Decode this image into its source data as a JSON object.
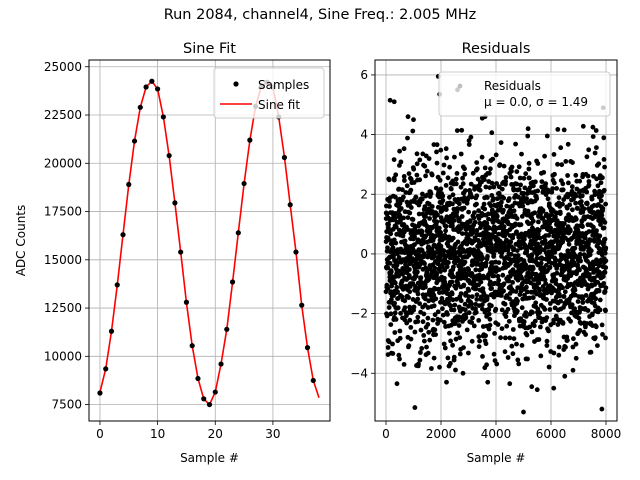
{
  "figure": {
    "suptitle": "Run 2084, channel4, Sine Freq.: 2.005 MHz"
  },
  "chart_data": [
    {
      "type": "line",
      "title": "Sine Fit",
      "xlabel": "Sample #",
      "ylabel": "ADC Counts",
      "xlim": [
        -1.9,
        39.9
      ],
      "ylim": [
        6650,
        25350
      ],
      "xticks": [
        0,
        10,
        20,
        30
      ],
      "yticks": [
        7500,
        10000,
        12500,
        15000,
        17500,
        20000,
        22500,
        25000
      ],
      "xtick_labels": [
        "0",
        "10",
        "20",
        "30"
      ],
      "ytick_labels": [
        "7500",
        "10000",
        "12500",
        "15000",
        "17500",
        "20000",
        "22500",
        "25000"
      ],
      "grid": true,
      "legend_position": "top-right",
      "series": [
        {
          "name": "Samples",
          "style": "markers",
          "color": "#000000",
          "x": [
            0,
            1,
            2,
            3,
            4,
            5,
            6,
            7,
            8,
            9,
            10,
            11,
            12,
            13,
            14,
            15,
            16,
            17,
            18,
            19,
            20,
            21,
            22,
            23,
            24,
            25,
            26,
            27,
            28,
            29,
            30,
            31,
            32,
            33,
            34,
            35,
            36,
            37
          ],
          "y": [
            8100,
            9350,
            11300,
            13700,
            16300,
            18900,
            21150,
            22900,
            23950,
            24250,
            23850,
            22400,
            20400,
            17950,
            15400,
            12800,
            10550,
            8850,
            7800,
            7500,
            8150,
            9600,
            11400,
            13850,
            16400,
            18950,
            21200,
            22950,
            24000,
            24200,
            23950,
            22400,
            20300,
            17850,
            15400,
            12650,
            10450,
            8750
          ]
        },
        {
          "name": "Sine fit",
          "style": "line",
          "color": "#ff0000",
          "x": [
            0,
            1,
            2,
            3,
            4,
            5,
            6,
            7,
            8,
            9,
            10,
            11,
            12,
            13,
            14,
            15,
            16,
            17,
            18,
            19,
            20,
            21,
            22,
            23,
            24,
            25,
            26,
            27,
            28,
            29,
            30,
            31,
            32,
            33,
            34,
            35,
            36,
            37,
            38
          ],
          "y": [
            8150,
            9350,
            11300,
            13700,
            16300,
            18900,
            21150,
            22900,
            23950,
            24250,
            23850,
            22400,
            20400,
            17950,
            15400,
            12800,
            10550,
            8850,
            7800,
            7500,
            8150,
            9600,
            11400,
            13850,
            16400,
            18950,
            21200,
            22950,
            24000,
            24200,
            23950,
            22400,
            20300,
            17850,
            15400,
            12650,
            10450,
            8750,
            7850
          ]
        }
      ]
    },
    {
      "type": "scatter",
      "title": "Residuals",
      "xlabel": "Sample #",
      "ylabel": "",
      "xlim": [
        -400,
        8400
      ],
      "ylim": [
        -5.6,
        6.5
      ],
      "xticks": [
        0,
        2000,
        4000,
        6000,
        8000
      ],
      "yticks": [
        -4,
        -2,
        0,
        2,
        4,
        6
      ],
      "xtick_labels": [
        "0",
        "2000",
        "4000",
        "6000",
        "8000"
      ],
      "ytick_labels": [
        "−4",
        "−2",
        "0",
        "2",
        "4",
        "6"
      ],
      "grid": true,
      "legend_position": "top-right",
      "n_points": 8000,
      "mu": 0.0,
      "sigma": 1.49,
      "legend_line1": "Residuals",
      "legend_line2_prefix": "μ = 0.0, σ = 1.49",
      "series": [
        {
          "name": "Residuals",
          "color": "#000000",
          "outliers": [
            {
              "x": 150,
              "y": 5.15
            },
            {
              "x": 300,
              "y": 5.1
            },
            {
              "x": 2600,
              "y": 5.5
            },
            {
              "x": 1900,
              "y": 5.95
            },
            {
              "x": 1950,
              "y": 5.35
            },
            {
              "x": 7900,
              "y": 4.9
            },
            {
              "x": 800,
              "y": 4.6
            },
            {
              "x": 1000,
              "y": 4.5
            },
            {
              "x": 3500,
              "y": 4.55
            },
            {
              "x": 3600,
              "y": 4.6
            },
            {
              "x": 1050,
              "y": -5.15
            },
            {
              "x": 5000,
              "y": -5.3
            },
            {
              "x": 7850,
              "y": -5.2
            },
            {
              "x": 400,
              "y": -4.35
            },
            {
              "x": 2200,
              "y": -4.3
            },
            {
              "x": 3700,
              "y": -4.3
            },
            {
              "x": 4500,
              "y": -4.35
            },
            {
              "x": 5500,
              "y": -4.55
            },
            {
              "x": 5300,
              "y": -4.45
            },
            {
              "x": 6500,
              "y": -4.1
            },
            {
              "x": 6100,
              "y": -4.5
            },
            {
              "x": 6800,
              "y": -3.9
            },
            {
              "x": 2800,
              "y": -4.0
            }
          ]
        }
      ]
    }
  ]
}
